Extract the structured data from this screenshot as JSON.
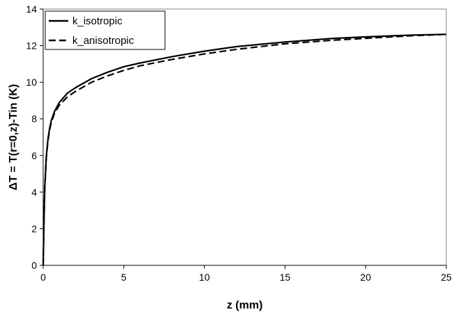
{
  "chart_data": {
    "type": "line",
    "title": "",
    "xlabel": "z (mm)",
    "ylabel": "ΔT = T(r=0,z)-Tin (K)",
    "xlim": [
      0,
      25
    ],
    "ylim": [
      0,
      14
    ],
    "xticks": [
      0,
      5,
      10,
      15,
      20,
      25
    ],
    "yticks": [
      0,
      2,
      4,
      6,
      8,
      10,
      12,
      14
    ],
    "grid": false,
    "legend": "top-left",
    "series": [
      {
        "name": "k_isotropic",
        "style": "solid",
        "color": "#000000",
        "x": [
          0,
          0.05,
          0.1,
          0.2,
          0.3,
          0.4,
          0.5,
          0.7,
          1.0,
          1.5,
          2,
          3,
          4,
          5,
          6,
          8,
          10,
          12,
          15,
          18,
          20,
          22,
          23,
          24,
          25
        ],
        "y": [
          0,
          2.5,
          4.3,
          6.0,
          6.9,
          7.5,
          7.9,
          8.4,
          8.9,
          9.4,
          9.7,
          10.2,
          10.55,
          10.85,
          11.05,
          11.4,
          11.7,
          11.95,
          12.2,
          12.4,
          12.48,
          12.55,
          12.58,
          12.6,
          12.62
        ]
      },
      {
        "name": "k_anisotropic",
        "style": "dashed",
        "color": "#000000",
        "x": [
          0,
          0.05,
          0.1,
          0.2,
          0.3,
          0.4,
          0.5,
          0.7,
          1.0,
          1.5,
          2,
          3,
          4,
          5,
          6,
          8,
          10,
          12,
          15,
          18,
          20,
          22,
          23,
          24,
          25
        ],
        "y": [
          0,
          2.4,
          4.2,
          5.9,
          6.8,
          7.4,
          7.8,
          8.3,
          8.75,
          9.2,
          9.5,
          10.0,
          10.35,
          10.65,
          10.9,
          11.25,
          11.55,
          11.8,
          12.1,
          12.3,
          12.4,
          12.5,
          12.55,
          12.58,
          12.62
        ]
      }
    ]
  }
}
